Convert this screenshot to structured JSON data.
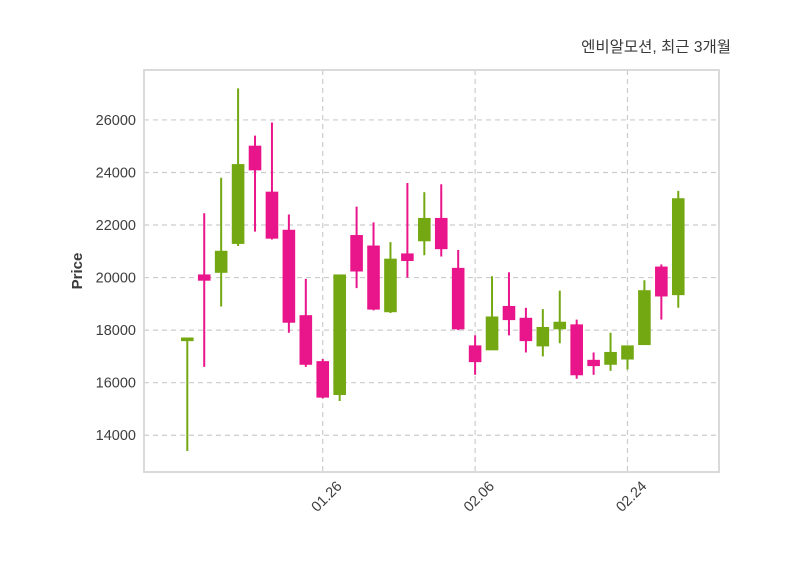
{
  "title": "엔비알모션, 최근 3개월",
  "chart_data": {
    "type": "candlestick",
    "title": "엔비알모션, 최근 3개월",
    "xlabel": "",
    "ylabel": "Price",
    "ylim": [
      12600,
      27900
    ],
    "yticks": [
      14000,
      16000,
      18000,
      20000,
      22000,
      24000,
      26000
    ],
    "xticks": [
      {
        "index": 8,
        "label": "01.26"
      },
      {
        "index": 17,
        "label": "02.06"
      },
      {
        "index": 26,
        "label": "02.24"
      }
    ],
    "grid": true,
    "legend": "none",
    "up_color": "#74a813",
    "down_color": "#e9158b",
    "candles": [
      {
        "open": 17600,
        "high": 17700,
        "low": 13400,
        "close": 17700
      },
      {
        "open": 20100,
        "high": 22450,
        "low": 16600,
        "close": 19900
      },
      {
        "open": 20200,
        "high": 23800,
        "low": 18900,
        "close": 21000
      },
      {
        "open": 21300,
        "high": 27200,
        "low": 21200,
        "close": 24300
      },
      {
        "open": 25000,
        "high": 25400,
        "low": 21750,
        "close": 24100
      },
      {
        "open": 23250,
        "high": 25900,
        "low": 21450,
        "close": 21500
      },
      {
        "open": 21800,
        "high": 22400,
        "low": 17900,
        "close": 18300
      },
      {
        "open": 18550,
        "high": 19950,
        "low": 16600,
        "close": 16700
      },
      {
        "open": 16800,
        "high": 16900,
        "low": 15400,
        "close": 15450
      },
      {
        "open": 15550,
        "high": 20100,
        "low": 15300,
        "close": 20100
      },
      {
        "open": 21600,
        "high": 22700,
        "low": 19600,
        "close": 20250
      },
      {
        "open": 21200,
        "high": 22100,
        "low": 18750,
        "close": 18800
      },
      {
        "open": 18700,
        "high": 21350,
        "low": 18650,
        "close": 20700
      },
      {
        "open": 20900,
        "high": 23600,
        "low": 20000,
        "close": 20650
      },
      {
        "open": 21400,
        "high": 23250,
        "low": 20850,
        "close": 22250
      },
      {
        "open": 22250,
        "high": 23550,
        "low": 20800,
        "close": 21100
      },
      {
        "open": 20350,
        "high": 21050,
        "low": 18000,
        "close": 18050
      },
      {
        "open": 17400,
        "high": 17800,
        "low": 16300,
        "close": 16800
      },
      {
        "open": 17250,
        "high": 20050,
        "low": 17250,
        "close": 18500
      },
      {
        "open": 18900,
        "high": 20200,
        "low": 17800,
        "close": 18400
      },
      {
        "open": 18450,
        "high": 18850,
        "low": 17150,
        "close": 17600
      },
      {
        "open": 17400,
        "high": 18800,
        "low": 17000,
        "close": 18100
      },
      {
        "open": 18050,
        "high": 19500,
        "low": 17500,
        "close": 18300
      },
      {
        "open": 18200,
        "high": 18400,
        "low": 16150,
        "close": 16300
      },
      {
        "open": 16850,
        "high": 17150,
        "low": 16300,
        "close": 16650
      },
      {
        "open": 16700,
        "high": 17900,
        "low": 16450,
        "close": 17150
      },
      {
        "open": 16900,
        "high": 17400,
        "low": 16500,
        "close": 17400
      },
      {
        "open": 17450,
        "high": 19900,
        "low": 17450,
        "close": 19500
      },
      {
        "open": 20400,
        "high": 20500,
        "low": 18400,
        "close": 19300
      },
      {
        "open": 19350,
        "high": 23300,
        "low": 18850,
        "close": 23000
      }
    ]
  }
}
